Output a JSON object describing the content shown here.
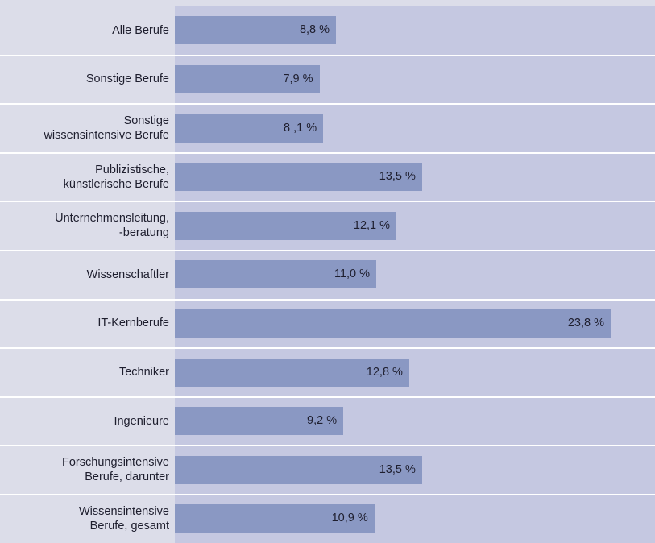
{
  "chart_data": {
    "type": "bar",
    "orientation": "horizontal",
    "categories": [
      "Alle Berufe",
      "Sonstige Berufe",
      "Sonstige\nwissensintensive Berufe",
      "Publizistische,\nkünstlerische Berufe",
      "Unternehmensleitung,\n-beratung",
      "Wissenschaftler",
      "IT-Kernberufe",
      "Techniker",
      "Ingenieure",
      "Forschungsintensive\nBerufe, darunter",
      "Wissensintensive\nBerufe, gesamt"
    ],
    "values": [
      8.8,
      7.9,
      8.1,
      13.5,
      12.1,
      11.0,
      23.8,
      12.8,
      9.2,
      13.5,
      10.9
    ],
    "value_labels": [
      "8,8 %",
      "7,9 %",
      "8 ,1 %",
      "13,5 %",
      "12,1 %",
      "11,0 %",
      "23,8 %",
      "12,8 %",
      "9,2 %",
      "13,5 %",
      "10,9 %"
    ],
    "title": "",
    "xlabel": "",
    "ylabel": "",
    "xlim": [
      0,
      26
    ],
    "grid": false,
    "legend": false,
    "colors": {
      "bar": "#8a98c3",
      "plot_background": "#c5c8e1",
      "label_background": "#dcdde9",
      "separator": "#ffffff"
    }
  }
}
